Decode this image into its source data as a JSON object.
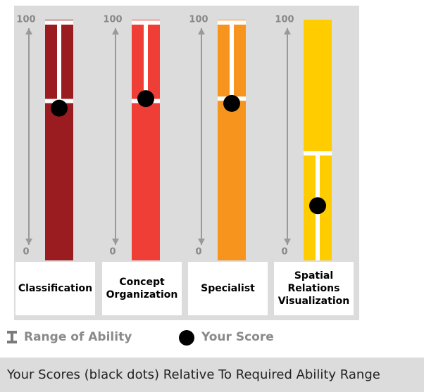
{
  "chart_data": {
    "type": "range",
    "ylim": [
      0,
      100
    ],
    "yticks": [
      0,
      100
    ],
    "categories": [
      "Classification",
      "Concept Organization",
      "Specialist",
      "Spatial Relations Visualization"
    ],
    "colors": [
      "#9b1c20",
      "#ef3e36",
      "#f7941d",
      "#ffcc00"
    ],
    "series": [
      {
        "name": "Range of Ability",
        "color": "#ffffff",
        "low": [
          67,
          67,
          68,
          0
        ],
        "high": [
          100,
          100,
          100,
          45
        ]
      },
      {
        "name": "Your Score",
        "color": "#000000",
        "values": [
          64,
          68,
          66,
          23
        ]
      }
    ]
  },
  "caption": "Your Scores (black dots) Relative To Required Ability Range"
}
